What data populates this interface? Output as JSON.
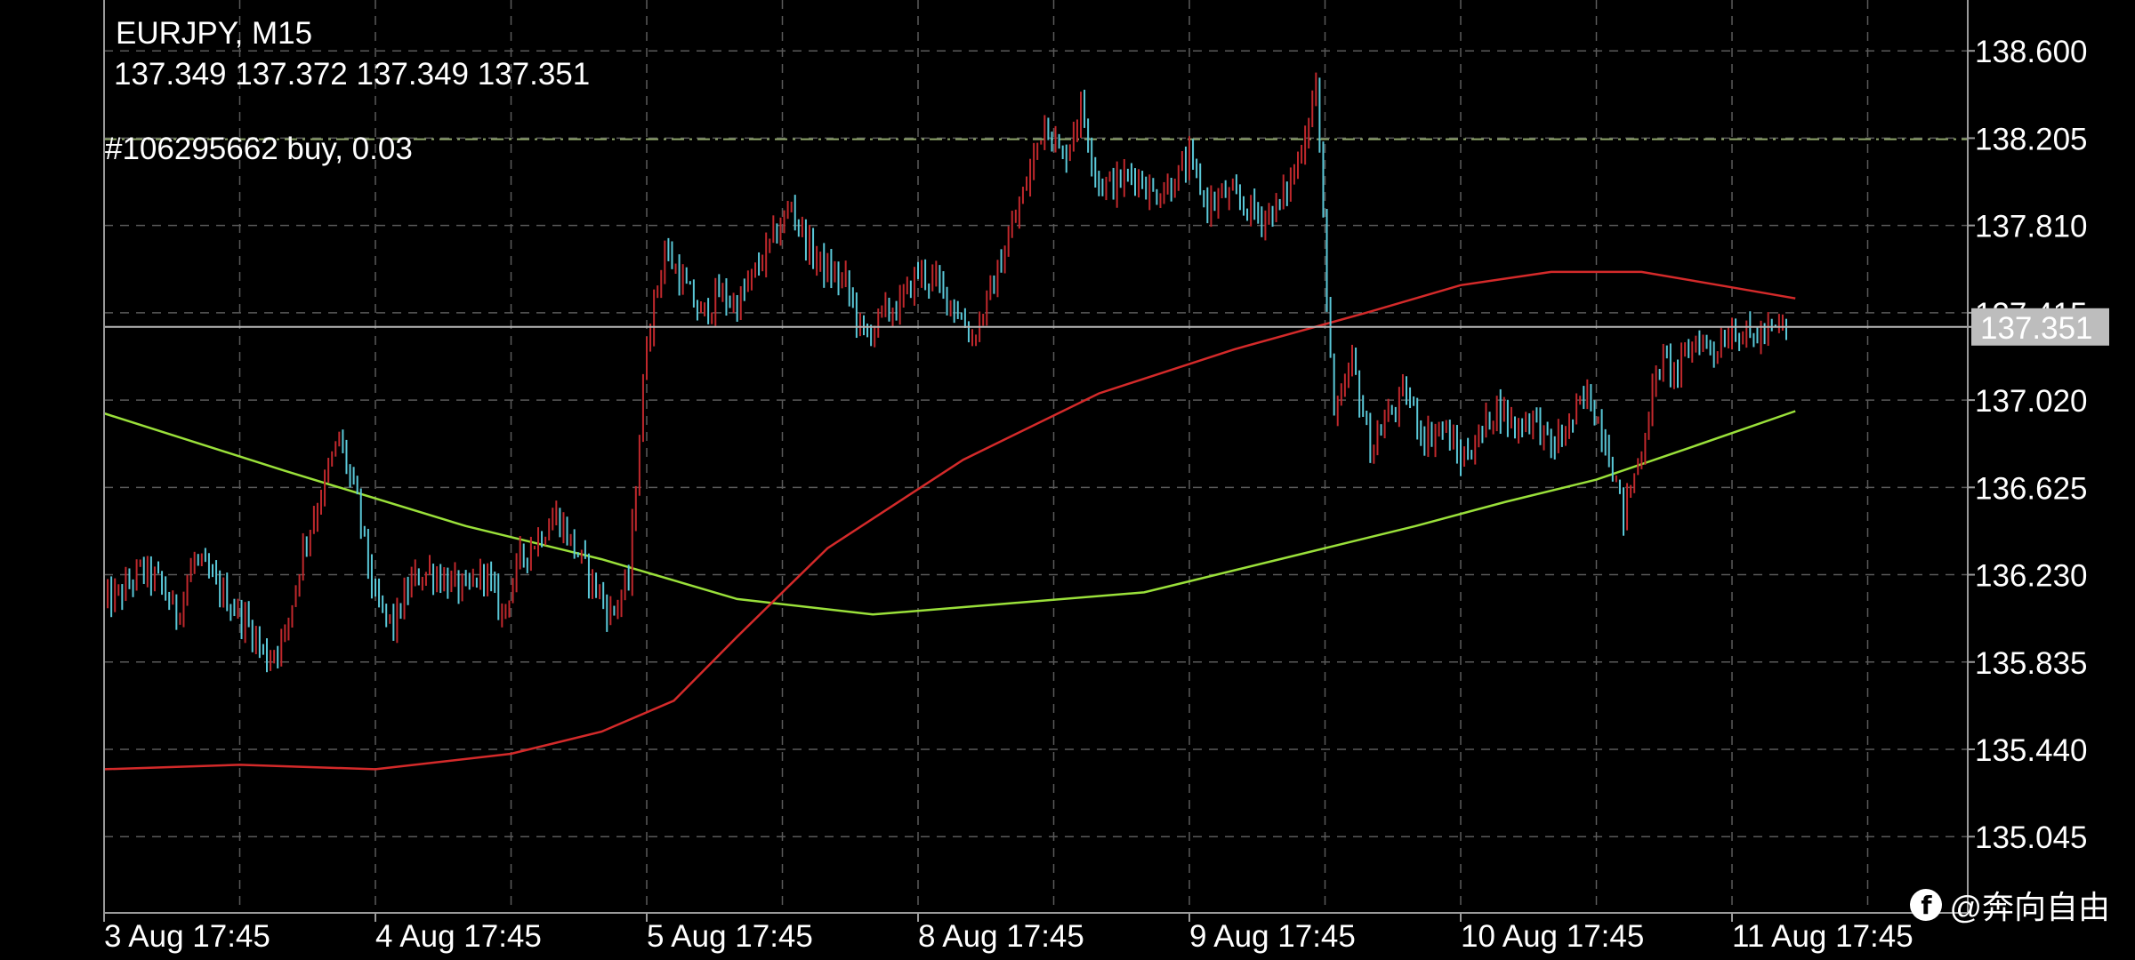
{
  "header": {
    "symbol_timeframe": "EURJPY, M15",
    "ohlc": "137.349 137.372 137.349 137.351",
    "order_label": "#106295662 buy, 0.03"
  },
  "watermark": {
    "icon": "social-icon",
    "text": "@奔向自由"
  },
  "colors": {
    "background": "#000000",
    "grid": "#5a5a5a",
    "axis": "#9a9a9a",
    "bull_candle": "#c0282c",
    "bear_candle": "#5ac8d8",
    "ma_fast": "#9ae03a",
    "ma_slow": "#d42a2a",
    "price_line": "#b8b8b8",
    "price_tag_bg": "#bdbdbd",
    "order_line": "#8fa66b"
  },
  "chart_data": {
    "type": "line",
    "instrument": "EURJPY",
    "timeframe": "M15",
    "x_tick_labels": [
      "3 Aug 17:45",
      "4 Aug 17:45",
      "5 Aug 17:45",
      "8 Aug 17:45",
      "9 Aug 17:45",
      "10 Aug 17:45",
      "11 Aug 17:45"
    ],
    "y_tick_labels": [
      "138.600",
      "138.205",
      "137.810",
      "137.415",
      "137.020",
      "136.625",
      "136.230",
      "135.835",
      "135.440",
      "135.045"
    ],
    "y_ticks": [
      138.6,
      138.205,
      137.81,
      137.415,
      137.02,
      136.625,
      136.23,
      135.835,
      135.44,
      135.045
    ],
    "ylim": [
      134.7,
      138.83
    ],
    "xlim": [
      0,
      19.8
    ],
    "x_ticks": [
      0,
      3,
      6,
      9,
      12,
      15,
      18
    ],
    "grid": true,
    "current_price": 137.351,
    "current_price_label": "137.351",
    "order_price": 138.2,
    "price_series_x": [
      0,
      0.2,
      0.4,
      0.6,
      0.8,
      1.0,
      1.2,
      1.4,
      1.6,
      1.8,
      2.0,
      2.2,
      2.4,
      2.6,
      2.8,
      3.0,
      3.2,
      3.4,
      3.6,
      3.8,
      4.0,
      4.2,
      4.4,
      4.6,
      4.8,
      5.0,
      5.2,
      5.4,
      5.6,
      5.8,
      6.0,
      6.2,
      6.4,
      6.6,
      6.8,
      7.0,
      7.2,
      7.4,
      7.6,
      7.8,
      8.0,
      8.2,
      8.4,
      8.6,
      8.8,
      9.0,
      9.2,
      9.4,
      9.6,
      9.8,
      10.0,
      10.2,
      10.4,
      10.6,
      10.8,
      11.0,
      11.2,
      11.4,
      11.6,
      11.8,
      12.0,
      12.2,
      12.4,
      12.6,
      12.8,
      13.0,
      13.2,
      13.4,
      13.6,
      13.8,
      14.0,
      14.2,
      14.4,
      14.6,
      14.8,
      15.0,
      15.2,
      15.4,
      15.6,
      15.8,
      16.0,
      16.2,
      16.4,
      16.6,
      16.8,
      17.0,
      17.2,
      17.4,
      17.6,
      17.8,
      18.0,
      18.2,
      18.6
    ],
    "price_series_y": [
      136.1,
      136.15,
      136.25,
      136.2,
      136.05,
      136.3,
      136.2,
      136.1,
      136.0,
      135.85,
      135.95,
      136.35,
      136.6,
      136.85,
      136.55,
      136.1,
      136.0,
      136.2,
      136.25,
      136.2,
      136.15,
      136.25,
      136.05,
      136.3,
      136.4,
      136.5,
      136.35,
      136.2,
      136.05,
      136.2,
      137.3,
      137.7,
      137.55,
      137.4,
      137.5,
      137.45,
      137.6,
      137.75,
      137.9,
      137.7,
      137.6,
      137.55,
      137.3,
      137.4,
      137.45,
      137.6,
      137.55,
      137.45,
      137.3,
      137.5,
      137.75,
      138.0,
      138.3,
      138.1,
      138.35,
      138.0,
      138.0,
      138.05,
      137.95,
      138.0,
      138.1,
      137.9,
      137.95,
      137.9,
      137.85,
      137.9,
      138.1,
      138.45,
      136.9,
      137.2,
      136.8,
      136.95,
      137.05,
      136.85,
      136.9,
      136.75,
      136.85,
      137.0,
      136.9,
      136.95,
      136.8,
      136.9,
      137.05,
      136.85,
      136.5,
      136.8,
      137.2,
      137.15,
      137.3,
      137.25,
      137.35,
      137.3,
      137.351
    ],
    "series": [
      {
        "name": "",
        "color": "#9ae03a",
        "x": [
          0,
          2.0,
          4.0,
          5.5,
          7.0,
          8.5,
          10.0,
          11.5,
          13.0,
          14.5,
          15.5,
          16.5,
          17.5,
          18.7
        ],
        "y": [
          136.96,
          136.7,
          136.45,
          136.3,
          136.12,
          136.05,
          136.1,
          136.15,
          136.3,
          136.45,
          136.56,
          136.66,
          136.8,
          136.97
        ]
      },
      {
        "name": "",
        "color": "#d42a2a",
        "x": [
          0,
          1.5,
          3.0,
          4.5,
          5.5,
          6.3,
          7.0,
          8.0,
          9.5,
          11.0,
          12.5,
          14.0,
          15.0,
          16.0,
          17.0,
          18.0,
          18.7
        ],
        "y": [
          135.35,
          135.37,
          135.35,
          135.42,
          135.52,
          135.66,
          135.95,
          136.35,
          136.75,
          137.05,
          137.25,
          137.42,
          137.54,
          137.6,
          137.6,
          137.53,
          137.48
        ]
      }
    ]
  }
}
